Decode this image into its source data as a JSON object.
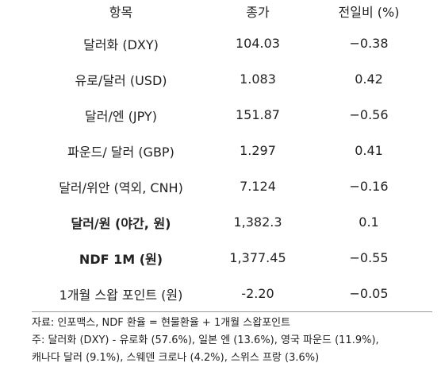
{
  "table": {
    "header": [
      "항목",
      "종가",
      "전일비 (%)"
    ],
    "rows": [
      [
        "달러화 (DXY)",
        "104.03",
        "−0.38"
      ],
      [
        "유로/달러 (USD)",
        "1.083",
        "0.42"
      ],
      [
        "달러/엔 (JPY)",
        "151.87",
        "−0.56"
      ],
      [
        "파운드/ 달러 (GBP)",
        "1.297",
        "0.41"
      ],
      [
        "달러/위안 (역외, CNH)",
        "7.124",
        "−0.16"
      ],
      [
        "달러/원 (야간, 원)",
        "1,382.3",
        "0.1"
      ],
      [
        "NDF 1M (원)",
        "1,377.45",
        "−0.55"
      ],
      [
        "1개월 스왑 포인트 (원)",
        "-2.20",
        "−0.05"
      ]
    ]
  },
  "notes": [
    "자료: 인포맥스, NDF 환율 = 현물환율 + 1개월 스왑포인트",
    "주: 달러화 (DXY) - 유로화 (57.6%), 일본 엔 (13.6%), 영국 파운드 (11.9%),",
    "캐나다 달러 (9.1%), 스웨덴 크로나 (4.2%), 스위스 프랑 (3.6%)"
  ]
}
